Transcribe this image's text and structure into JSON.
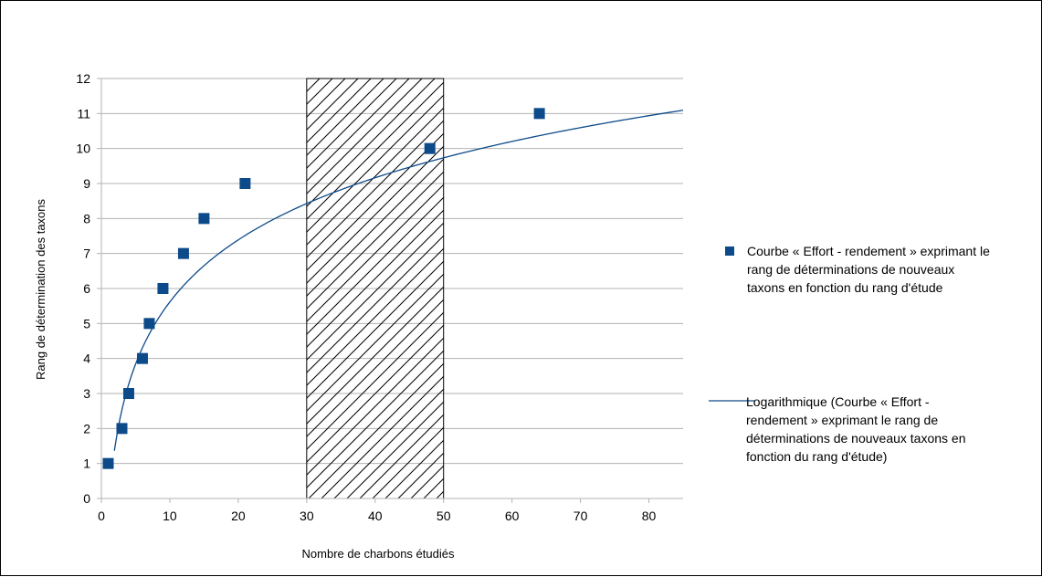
{
  "chart_data": {
    "type": "scatter",
    "title": "",
    "xlabel": "Nombre de charbons étudiés",
    "ylabel": "Rang de détermination des taxons",
    "xlim": [
      0,
      85
    ],
    "ylim": [
      0,
      12
    ],
    "xticks": [
      0,
      10,
      20,
      30,
      40,
      50,
      60,
      70,
      80
    ],
    "yticks": [
      0,
      1,
      2,
      3,
      4,
      5,
      6,
      7,
      8,
      9,
      10,
      11,
      12
    ],
    "grid": true,
    "legend_position": "right",
    "series": [
      {
        "name": "Courbe « Effort - rendement » exprimant le rang de déterminations de nouveaux taxons en fonction du rang d'étude",
        "legend_lines": [
          "Courbe « Effort - rendement » exprimant le",
          "rang de déterminations de nouveaux",
          "taxons en fonction du rang d'étude"
        ],
        "kind": "scatter",
        "marker": "square",
        "color": "#0d4a8a",
        "x": [
          1,
          3,
          4,
          6,
          7,
          9,
          12,
          15,
          21,
          48,
          64
        ],
        "y": [
          1,
          2,
          3,
          4,
          5,
          6,
          7,
          8,
          9,
          10,
          11
        ]
      },
      {
        "name": "Logarithmique (Courbe « Effort - rendement » exprimant le rang de déterminations de nouveaux taxons en fonction du rang d'étude)",
        "legend_lines": [
          "Logarithmique (Courbe « Effort -",
          "rendement » exprimant le rang de",
          "déterminations de nouveaux taxons en",
          "fonction du rang d'étude)"
        ],
        "kind": "trendline-log",
        "color": "#0d4a8a",
        "coef_a": 2.56,
        "coef_b": -0.28,
        "x_start": 1.9,
        "x_end": 85
      }
    ],
    "annotations": [
      {
        "type": "hatched-rect",
        "x0": 30,
        "x1": 50,
        "y0": 0,
        "y1": 12
      }
    ]
  }
}
